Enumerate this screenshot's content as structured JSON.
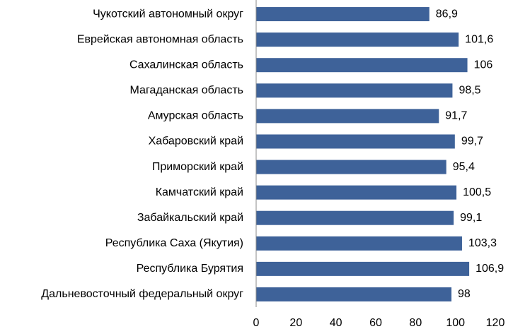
{
  "chart_data": {
    "type": "bar",
    "orientation": "horizontal",
    "categories": [
      "Чукотский автономный округ",
      "Еврейская автономная область",
      "Сахалинская область",
      "Магаданская область",
      "Амурская область",
      "Хабаровский край",
      "Приморский край",
      "Камчатский край",
      "Забайкальский край",
      "Республика Саха (Якутия)",
      "Республика Бурятия",
      "Дальневосточный федеральный округ"
    ],
    "values": [
      86.9,
      101.6,
      106,
      98.5,
      91.7,
      99.7,
      95.4,
      100.5,
      99.1,
      103.3,
      106.9,
      98
    ],
    "value_labels": [
      "86,9",
      "101,6",
      "106",
      "98,5",
      "91,7",
      "99,7",
      "95,4",
      "100,5",
      "99,1",
      "103,3",
      "106,9",
      "98"
    ],
    "xlim": [
      0,
      120
    ],
    "xticks": [
      0,
      20,
      40,
      60,
      80,
      100,
      120
    ],
    "xtick_labels": [
      "0",
      "20",
      "40",
      "60",
      "80",
      "100",
      "120"
    ],
    "bar_color": "#3e6299",
    "grid": false,
    "legend": "none"
  }
}
